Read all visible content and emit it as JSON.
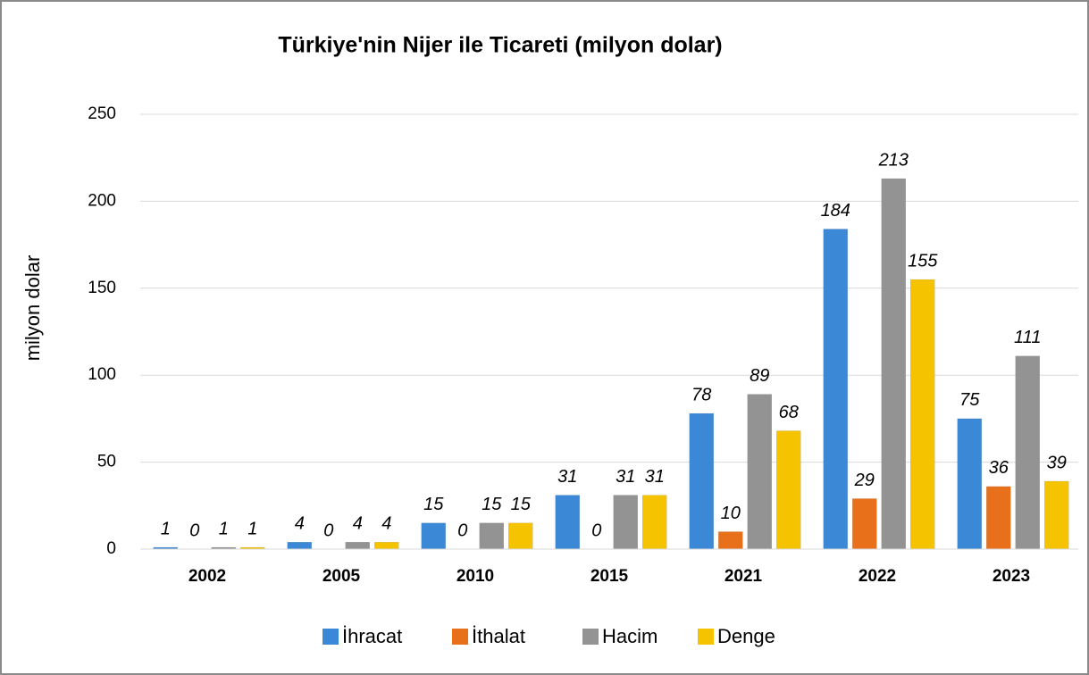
{
  "chart_data": {
    "type": "bar",
    "title": "Türkiye'nin Nijer ile Ticareti (milyon dolar)",
    "y_label": "milyon dolar",
    "categories": [
      "2002",
      "2005",
      "2010",
      "2015",
      "2021",
      "2022",
      "2023"
    ],
    "series": [
      {
        "name": "İhracat",
        "color": "#3b88d6",
        "values": [
          1,
          4,
          15,
          31,
          78,
          184,
          75
        ]
      },
      {
        "name": "İthalat",
        "color": "#e8701b",
        "values": [
          0,
          0,
          0,
          0,
          10,
          29,
          36
        ]
      },
      {
        "name": "Hacim",
        "color": "#939393",
        "values": [
          1,
          4,
          15,
          31,
          89,
          213,
          111
        ]
      },
      {
        "name": "Denge",
        "color": "#f5c300",
        "values": [
          1,
          4,
          15,
          31,
          68,
          155,
          39
        ]
      }
    ],
    "ylim": [
      0,
      250
    ],
    "yticks": [
      0,
      50,
      100,
      150,
      200,
      250
    ],
    "grid": true,
    "legend": "bottom"
  }
}
